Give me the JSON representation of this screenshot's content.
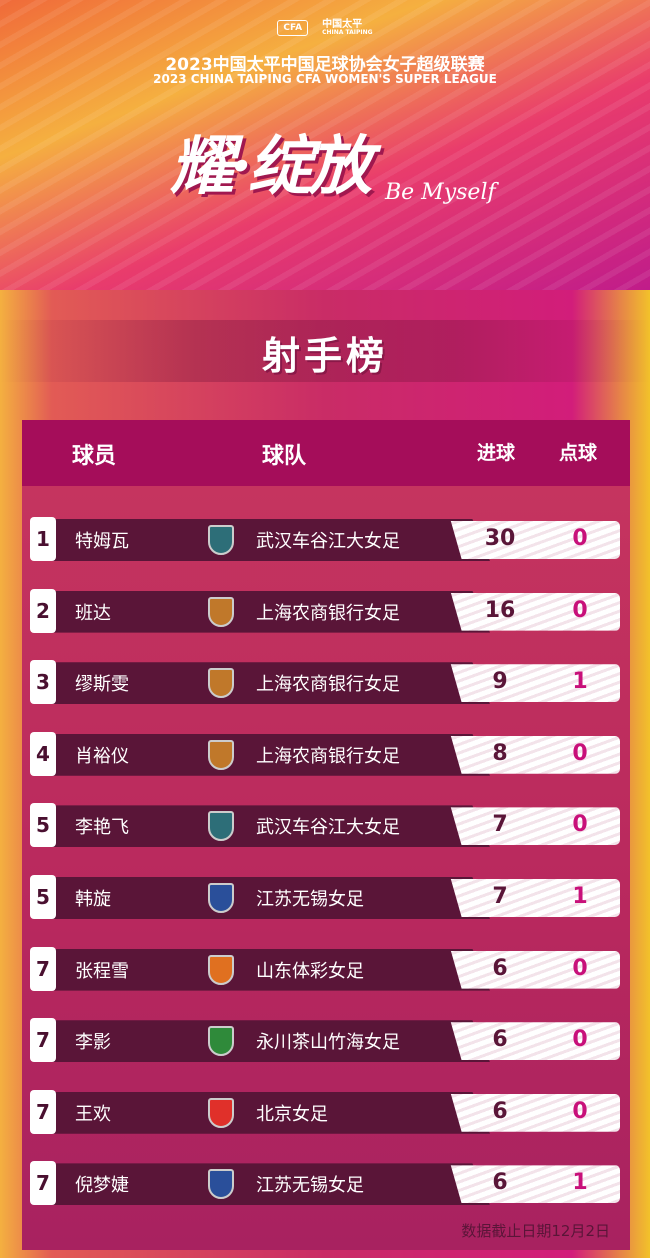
{
  "header": {
    "logo_cfa": "CFA",
    "logo_sponsor": "中国太平",
    "logo_sponsor_en": "CHINA TAIPING",
    "title_cn": "2023中国太平中国足球协会女子超级联赛",
    "title_en": "2023 CHINA TAIPING CFA WOMEN'S SUPER LEAGUE",
    "slogan": "耀·绽放",
    "slogan_en": "Be Myself"
  },
  "section_title": "射手榜",
  "columns": {
    "player": "球员",
    "team": "球队",
    "goals": "进球",
    "penalties": "点球"
  },
  "rows": [
    {
      "rank": "1",
      "player": "特姆瓦",
      "team": "武汉车谷江大女足",
      "goals": "30",
      "penalties": "0",
      "crest": "#2d6e78"
    },
    {
      "rank": "2",
      "player": "班达",
      "team": "上海农商银行女足",
      "goals": "16",
      "penalties": "0",
      "crest": "#c0782a"
    },
    {
      "rank": "3",
      "player": "缪斯雯",
      "team": "上海农商银行女足",
      "goals": "9",
      "penalties": "1",
      "crest": "#c0782a"
    },
    {
      "rank": "4",
      "player": "肖裕仪",
      "team": "上海农商银行女足",
      "goals": "8",
      "penalties": "0",
      "crest": "#c0782a"
    },
    {
      "rank": "5",
      "player": "李艳飞",
      "team": "武汉车谷江大女足",
      "goals": "7",
      "penalties": "0",
      "crest": "#2d6e78"
    },
    {
      "rank": "5",
      "player": "韩旋",
      "team": "江苏无锡女足",
      "goals": "7",
      "penalties": "1",
      "crest": "#2a4f9a"
    },
    {
      "rank": "7",
      "player": "张程雪",
      "team": "山东体彩女足",
      "goals": "6",
      "penalties": "0",
      "crest": "#e07020"
    },
    {
      "rank": "7",
      "player": "李影",
      "team": "永川茶山竹海女足",
      "goals": "6",
      "penalties": "0",
      "crest": "#2f8a3a"
    },
    {
      "rank": "7",
      "player": "王欢",
      "team": "北京女足",
      "goals": "6",
      "penalties": "0",
      "crest": "#e0302a"
    },
    {
      "rank": "7",
      "player": "倪梦婕",
      "team": "江苏无锡女足",
      "goals": "6",
      "penalties": "1",
      "crest": "#2a4f9a"
    }
  ],
  "footer": "数据截止日期12月2日"
}
